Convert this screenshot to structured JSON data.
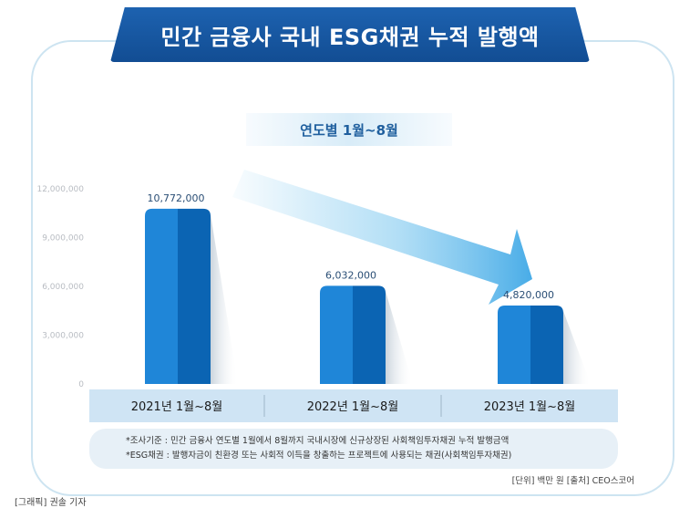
{
  "title": "민간 금융사 국내 ESG채권 누적 발행액",
  "period_label": "연도별 1월~8월",
  "chart_data": {
    "type": "bar",
    "categories": [
      "2021년 1월~8월",
      "2022년 1월~8월",
      "2023년 1월~8월"
    ],
    "values": [
      10772000,
      6032000,
      4820000
    ],
    "value_labels": [
      "10,772,000",
      "6,032,000",
      "4,820,000"
    ],
    "y_ticks": [
      0,
      3000000,
      6000000,
      9000000,
      12000000
    ],
    "y_tick_labels": [
      "0",
      "3,000,000",
      "6,000,000",
      "9,000,000",
      "12,000,000"
    ],
    "ylim": [
      0,
      12000000
    ],
    "grid": false,
    "colors": {
      "bar_light": "#1f86d8",
      "bar_dark": "#0b64b3",
      "arrow": "#74c4ee",
      "axis_band": "#cfe4f4"
    }
  },
  "notes": [
    "*조사기준 : 민간 금융사 연도별 1월에서 8월까지 국내시장에 신규상장된 사회책임투자채권 누적 발행금액",
    "*ESG채권 : 발행자금이 친환경 또는 사회적 이득을 창출하는 프로젝트에 사용되는 채권(사회책임투자채권)"
  ],
  "source": "[단위] 백만 원   [출처] CEO스코어",
  "credit": "[그래픽] 권솔 기자"
}
